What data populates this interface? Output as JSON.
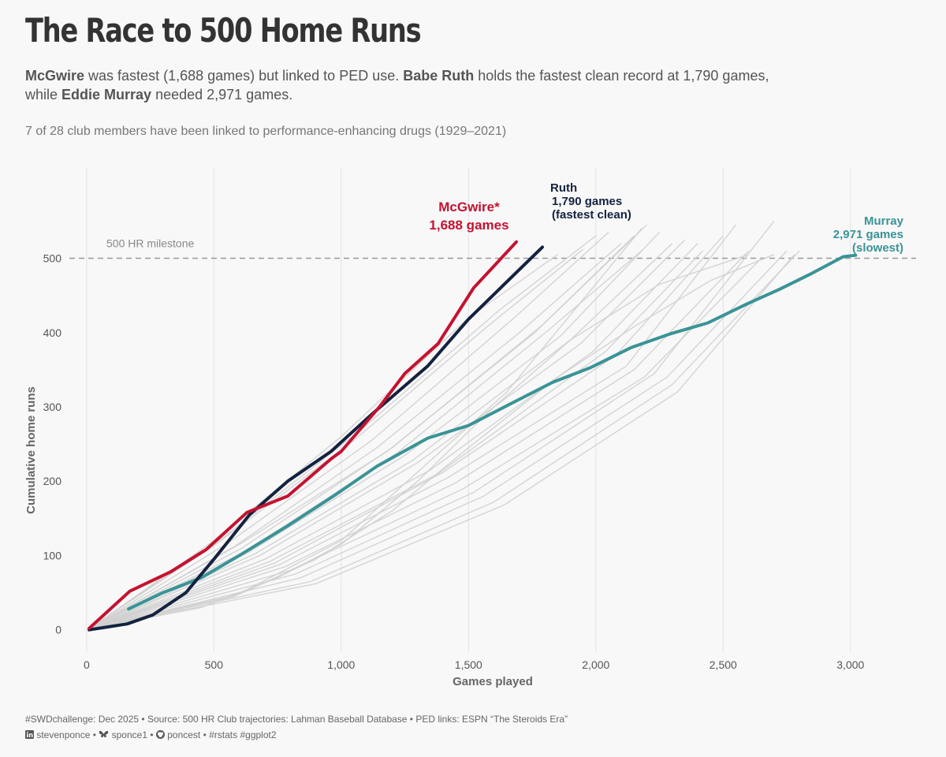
{
  "header": {
    "title": "The Race to 500 Home Runs",
    "subtitle": {
      "p1_bold": "McGwire",
      "p1": " was fastest (1,688 games) but linked to PED use. ",
      "p2_bold": "Babe Ruth",
      "p2": " holds the fastest clean record at 1,790 games,",
      "p3": "while ",
      "p3_bold": "Eddie Murray",
      "p4": " needed 2,971 games."
    },
    "note": "7 of 28 club members have been linked to performance-enhancing drugs (1929–2021)"
  },
  "colors": {
    "background": "#f8f8f8",
    "mcgwire": "#c41230",
    "ruth": "#13223f",
    "murray": "#3a9396",
    "others": "#cfcfcf",
    "grid": "#e2e2e2",
    "milestone": "#999999"
  },
  "chart_data": {
    "type": "line",
    "xlabel": "Games played",
    "ylabel": "Cumulative home runs",
    "xlim": [
      -80,
      3270
    ],
    "ylim": [
      -30,
      630
    ],
    "xticks": [
      0,
      500,
      1000,
      1500,
      2000,
      2500,
      3000
    ],
    "xtick_labels": [
      "0",
      "500",
      "1,000",
      "1,500",
      "2,000",
      "2,500",
      "3,000"
    ],
    "yticks": [
      0,
      100,
      200,
      300,
      400,
      500
    ],
    "ytick_labels": [
      "0",
      "100",
      "200",
      "300",
      "400",
      "500"
    ],
    "grid": "vertical",
    "reference_line": {
      "y": 500,
      "label": "500 HR milestone"
    },
    "highlight": [
      {
        "key": "mcgwire",
        "label_line1": "McGwire*",
        "label_line2": "1,688 games",
        "x": [
          10,
          170,
          330,
          470,
          630,
          790,
          960,
          1000,
          1150,
          1250,
          1380,
          1520,
          1688
        ],
        "y": [
          2,
          52,
          78,
          108,
          158,
          180,
          230,
          240,
          300,
          345,
          385,
          460,
          522
        ]
      },
      {
        "key": "ruth",
        "label_line1": "Ruth",
        "label_line2": "1,790 games",
        "label_line3": "(fastest clean)",
        "x": [
          10,
          160,
          260,
          390,
          500,
          640,
          790,
          960,
          1120,
          1340,
          1500,
          1790
        ],
        "y": [
          0,
          8,
          20,
          50,
          95,
          155,
          200,
          240,
          290,
          355,
          418,
          515
        ]
      },
      {
        "key": "murray",
        "label_line1": "Murray",
        "label_line2": "2,971 games",
        "label_line3": "(slowest)",
        "x": [
          165,
          300,
          450,
          600,
          790,
          970,
          1140,
          1340,
          1500,
          1670,
          1830,
          1980,
          2140,
          2290,
          2440,
          2590,
          2720,
          2850,
          2971,
          3020
        ],
        "y": [
          28,
          50,
          70,
          100,
          140,
          180,
          220,
          258,
          275,
          305,
          333,
          353,
          380,
          398,
          413,
          438,
          458,
          480,
          502,
          504
        ]
      }
    ],
    "others": [
      {
        "x": [
          20,
          500,
          1000,
          1500,
          1850
        ],
        "y": [
          3,
          120,
          260,
          420,
          505
        ]
      },
      {
        "x": [
          20,
          520,
          1050,
          1580,
          1950
        ],
        "y": [
          4,
          118,
          255,
          410,
          512
        ]
      },
      {
        "x": [
          20,
          540,
          1080,
          1620,
          2000
        ],
        "y": [
          4,
          125,
          270,
          430,
          530
        ]
      },
      {
        "x": [
          20,
          560,
          1120,
          1680,
          2050
        ],
        "y": [
          3,
          118,
          255,
          420,
          535
        ]
      },
      {
        "x": [
          20,
          580,
          1140,
          1700,
          2100
        ],
        "y": [
          3,
          112,
          245,
          400,
          520
        ]
      },
      {
        "x": [
          20,
          600,
          1180,
          1760,
          2150
        ],
        "y": [
          3,
          115,
          240,
          400,
          530
        ]
      },
      {
        "x": [
          20,
          610,
          1200,
          1790,
          2200
        ],
        "y": [
          3,
          110,
          245,
          410,
          545
        ]
      },
      {
        "x": [
          20,
          620,
          1220,
          1820,
          2180
        ],
        "y": [
          3,
          105,
          238,
          405,
          510
        ]
      },
      {
        "x": [
          20,
          640,
          1250,
          1860,
          2250
        ],
        "y": [
          3,
          105,
          235,
          395,
          535
        ]
      },
      {
        "x": [
          20,
          660,
          1280,
          1900,
          2300
        ],
        "y": [
          2,
          102,
          228,
          390,
          520
        ]
      },
      {
        "x": [
          20,
          680,
          1300,
          1940,
          2350
        ],
        "y": [
          2,
          100,
          225,
          385,
          525
        ]
      },
      {
        "x": [
          20,
          700,
          1350,
          1990,
          2400
        ],
        "y": [
          2,
          95,
          215,
          375,
          520
        ]
      },
      {
        "x": [
          20,
          720,
          1380,
          2040,
          2420
        ],
        "y": [
          2,
          92,
          210,
          375,
          510
        ]
      },
      {
        "x": [
          20,
          740,
          1400,
          2080,
          2500
        ],
        "y": [
          2,
          90,
          212,
          370,
          530
        ]
      },
      {
        "x": [
          20,
          760,
          1420,
          2120,
          2550
        ],
        "y": [
          2,
          88,
          205,
          355,
          545
        ]
      },
      {
        "x": [
          20,
          780,
          1450,
          2150,
          2600
        ],
        "y": [
          2,
          85,
          198,
          350,
          510
        ]
      },
      {
        "x": [
          20,
          800,
          1480,
          2190,
          2650
        ],
        "y": [
          2,
          80,
          190,
          340,
          500
        ]
      },
      {
        "x": [
          20,
          820,
          1520,
          2230,
          2700
        ],
        "y": [
          2,
          75,
          185,
          345,
          550
        ]
      },
      {
        "x": [
          20,
          840,
          1560,
          2280,
          2750
        ],
        "y": [
          2,
          70,
          180,
          340,
          510
        ]
      },
      {
        "x": [
          20,
          880,
          1600,
          2300,
          2800
        ],
        "y": [
          2,
          65,
          172,
          330,
          510
        ]
      },
      {
        "x": [
          20,
          900,
          1640,
          2320,
          2780
        ],
        "y": [
          2,
          62,
          168,
          320,
          505
        ]
      },
      {
        "x": [
          20,
          580,
          1000,
          1650,
          2180
        ],
        "y": [
          2,
          45,
          120,
          320,
          540
        ]
      },
      {
        "x": [
          20,
          600,
          900,
          1200,
          1500,
          1850,
          2160,
          2450,
          2700
        ],
        "y": [
          2,
          48,
          95,
          160,
          245,
          340,
          410,
          470,
          505
        ]
      },
      {
        "x": [
          20,
          450,
          750,
          1000,
          1300,
          1600,
          1900,
          2250,
          2600
        ],
        "y": [
          2,
          30,
          70,
          115,
          200,
          300,
          390,
          465,
          505
        ]
      }
    ]
  },
  "caption": {
    "line1": "#SWDchallenge: Dec 2025 • Source: 500 HR Club trajectories: Lahman Baseball Database • PED links: ESPN “The Steroids Era”",
    "linkedin": "stevenponce",
    "bluesky": "sponce1",
    "github": "poncest",
    "tags": "#rstats #ggplot2",
    "sep": " • "
  }
}
